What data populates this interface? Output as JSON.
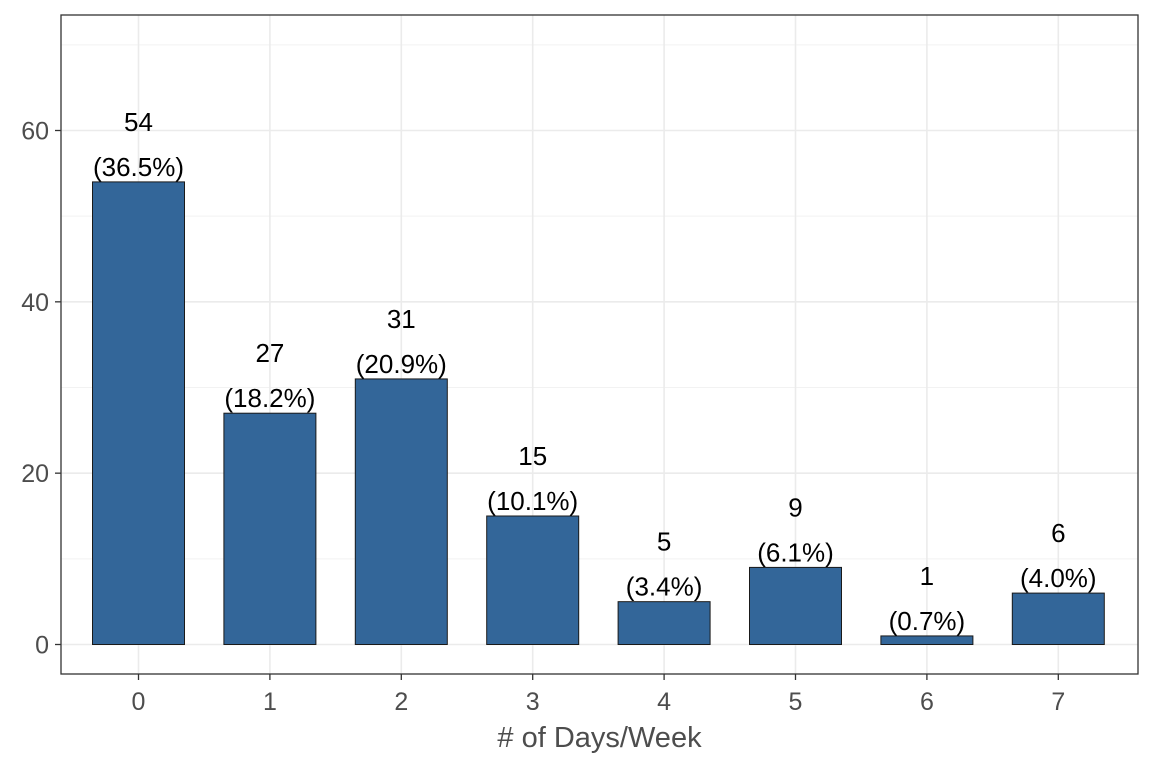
{
  "chart_data": {
    "type": "bar",
    "categories": [
      "0",
      "1",
      "2",
      "3",
      "4",
      "5",
      "6",
      "7"
    ],
    "values": [
      54,
      27,
      31,
      15,
      5,
      9,
      1,
      6
    ],
    "labels": [
      [
        "54",
        "(36.5%)"
      ],
      [
        "27",
        "(18.2%)"
      ],
      [
        "31",
        "(20.9%)"
      ],
      [
        "15",
        "(10.1%)"
      ],
      [
        "5",
        "(3.4%)"
      ],
      [
        "9",
        "(6.1%)"
      ],
      [
        "1",
        "(0.7%)"
      ],
      [
        "6",
        "(4.0%)"
      ]
    ],
    "title": "",
    "xlabel": "# of Days/Week",
    "ylabel": "",
    "ylim": [
      -3.5,
      72
    ],
    "yticks": [
      0,
      20,
      40,
      60
    ],
    "yticks_minor": [
      10,
      30,
      50,
      70
    ],
    "grid": true,
    "bar_color": "#336699",
    "bar_outline": "#1a1a1a"
  }
}
